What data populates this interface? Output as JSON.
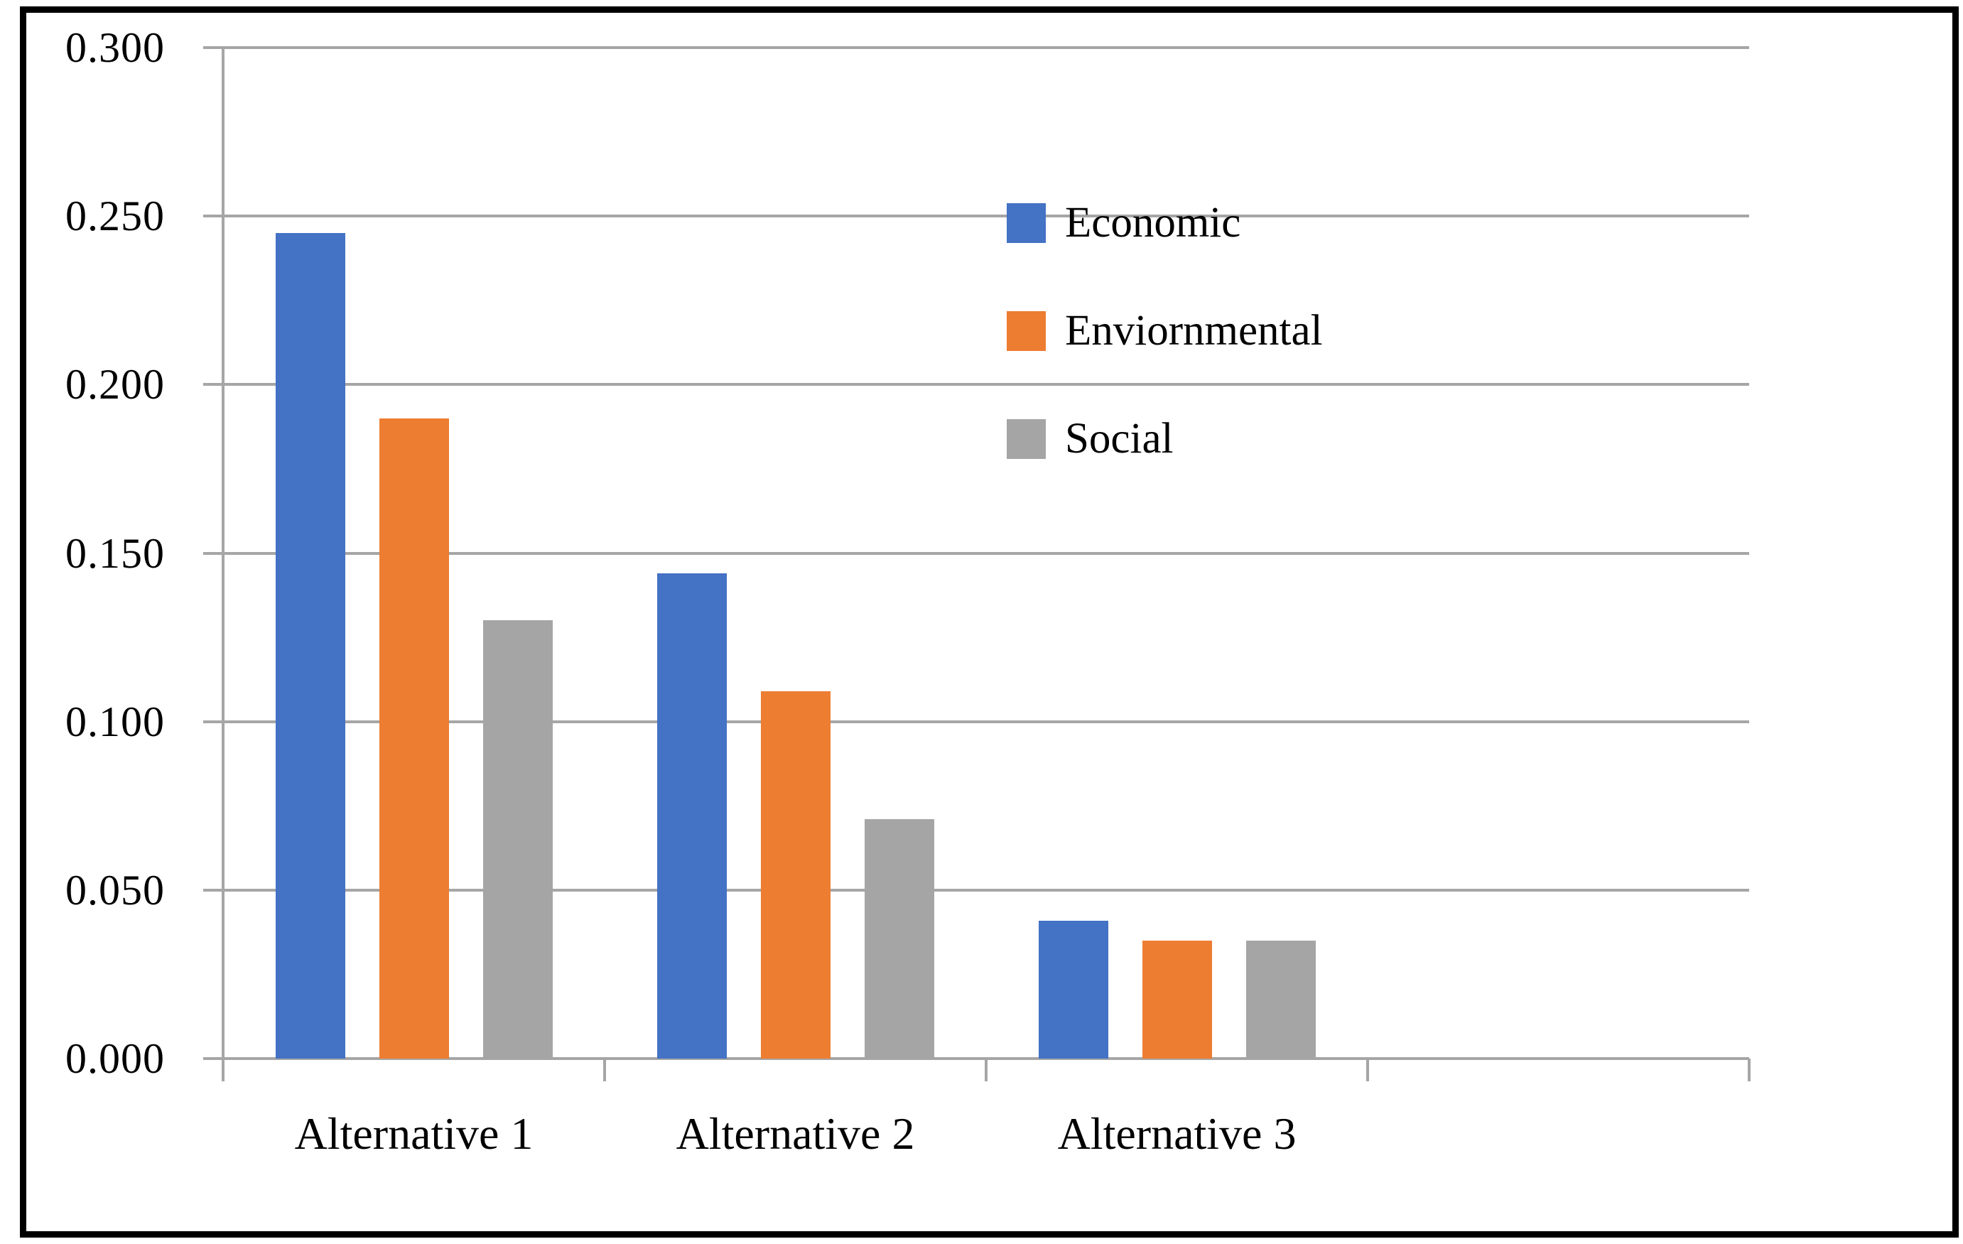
{
  "figure": {
    "background": "#FFFFFF",
    "border_color": "#000000"
  },
  "chart_data": {
    "type": "bar",
    "title": "",
    "xlabel": "",
    "ylabel": "",
    "categories": [
      "Alternative 1",
      "Alternative 2",
      "Alternative 3"
    ],
    "series": [
      {
        "name": "Economic",
        "color": "#4472C4",
        "values": [
          0.245,
          0.144,
          0.041
        ]
      },
      {
        "name": "Enviornmental",
        "color": "#ED7D31",
        "values": [
          0.19,
          0.109,
          0.035
        ]
      },
      {
        "name": "Social",
        "color": "#A5A5A5",
        "values": [
          0.13,
          0.071,
          0.035
        ]
      }
    ],
    "ylim": [
      0,
      0.3
    ],
    "ytick_step": 0.05,
    "ytick_labels": [
      "0.000",
      "0.050",
      "0.100",
      "0.150",
      "0.200",
      "0.250",
      "0.300"
    ],
    "x_axis_slots": 4,
    "grid": true,
    "gridline_color": "#A6A6A6",
    "legend_position": "inside-top-right"
  }
}
